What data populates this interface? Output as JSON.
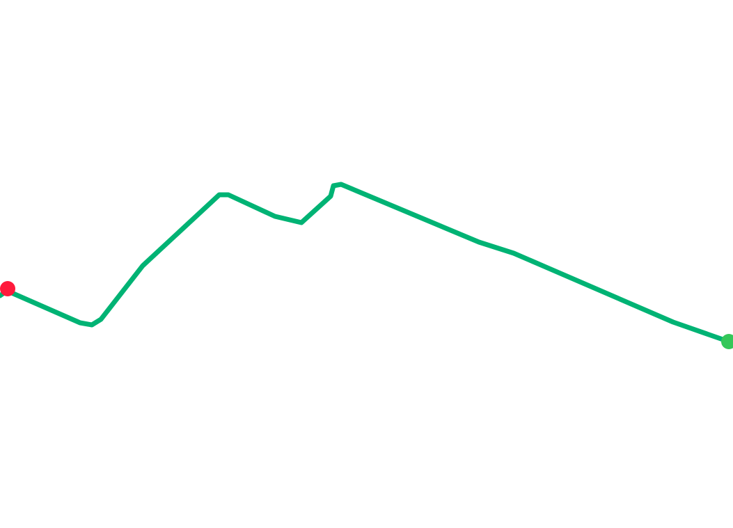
{
  "map": {
    "background_color": "#ffffff",
    "route": {
      "color": "#00b374"
    },
    "start_marker": {
      "color": "#ff1a3c",
      "icon": "start-point-marker"
    },
    "end_marker": {
      "color": "#34c759",
      "icon": "end-point-marker"
    }
  }
}
